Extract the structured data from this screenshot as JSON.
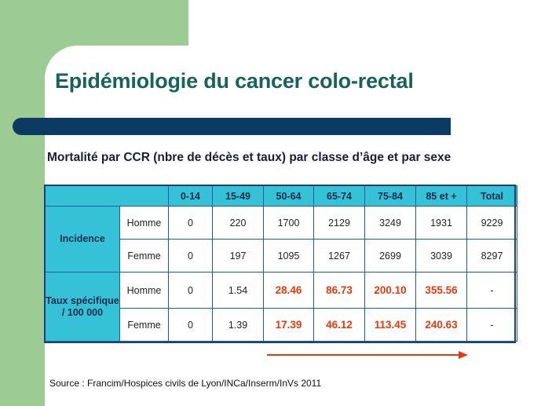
{
  "slide": {
    "title": "Epidémiologie du cancer colo-rectal",
    "subtitle": "Mortalité par CCR (nbre de décès et taux) par classe d’âge et par sexe",
    "source": "Source : Francim/Hospices civils de Lyon/INCa/Inserm/InVs 2011"
  },
  "table": {
    "headers": [
      "0-14",
      "15-49",
      "50-64",
      "65-74",
      "75-84",
      "85 et +",
      "Total"
    ],
    "groups": {
      "incidence": "Incidence",
      "taux": "Taux spécifique / 100 000"
    },
    "sex": {
      "homme": "Homme",
      "femme": "Femme"
    },
    "incidence_homme": [
      "0",
      "220",
      "1700",
      "2129",
      "3249",
      "1931",
      "9229"
    ],
    "incidence_femme": [
      "0",
      "197",
      "1095",
      "1267",
      "2699",
      "3039",
      "8297"
    ],
    "taux_homme": [
      "0",
      "1.54",
      "28.46",
      "86.73",
      "200.10",
      "355.56",
      "-"
    ],
    "taux_femme": [
      "0",
      "1.39",
      "17.39",
      "46.12",
      "113.45",
      "240.63",
      "-"
    ]
  },
  "colors": {
    "title": "#17635b",
    "header_fill": "#35c2d6",
    "highlight": "#e8390e",
    "bar": "#0b3a63",
    "green": "#9ccc94"
  },
  "icons": {
    "arrow": "right-arrow-icon"
  }
}
